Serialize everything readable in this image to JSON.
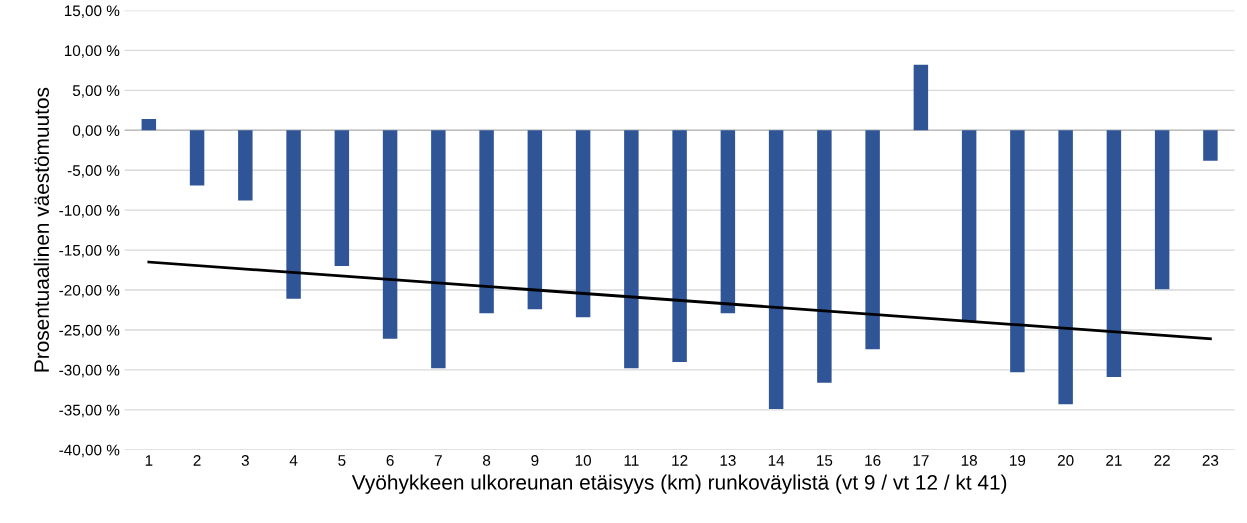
{
  "chart_data": {
    "type": "bar",
    "ylabel": "Prosentuaalinen väestömuutos",
    "xlabel": "Vyöhykkeen ulkoreunan etäisyys (km) runkoväylistä (vt 9 / vt 12 / kt 41)",
    "categories": [
      "1",
      "2",
      "3",
      "4",
      "5",
      "6",
      "7",
      "8",
      "9",
      "10",
      "11",
      "12",
      "13",
      "14",
      "15",
      "16",
      "17",
      "18",
      "19",
      "20",
      "21",
      "22",
      "23"
    ],
    "series": [
      {
        "color": "#2f5597",
        "values": [
          1.4,
          -6.9,
          -8.8,
          -21.1,
          -17.0,
          -26.1,
          -29.8,
          -22.9,
          -22.4,
          -23.4,
          -29.8,
          -29.0,
          -22.9,
          -34.9,
          -31.6,
          -27.4,
          8.2,
          -23.9,
          -30.3,
          -34.3,
          -30.9,
          -19.9,
          -3.8
        ]
      },
      {
        "type": "line",
        "color": "#000000",
        "x": [
          "1",
          "23"
        ],
        "values": [
          -16.5,
          -26.1
        ]
      }
    ],
    "ylim": [
      -40,
      15
    ],
    "yticks": [
      {
        "value": -40,
        "label": "-40,00 %"
      },
      {
        "value": -35,
        "label": "-35,00 %"
      },
      {
        "value": -30,
        "label": "-30,00 %"
      },
      {
        "value": -25,
        "label": "-25,00 %"
      },
      {
        "value": -20,
        "label": "-20,00 %"
      },
      {
        "value": -15,
        "label": "-15,00 %"
      },
      {
        "value": -10,
        "label": "-10,00 %"
      },
      {
        "value": -5,
        "label": "-5,00 %"
      },
      {
        "value": 0,
        "label": "0,00 %"
      },
      {
        "value": 5,
        "label": "5,00 %"
      },
      {
        "value": 10,
        "label": "10,00 %"
      },
      {
        "value": 15,
        "label": "15,00 %"
      }
    ],
    "grid": "y",
    "legend": false
  }
}
